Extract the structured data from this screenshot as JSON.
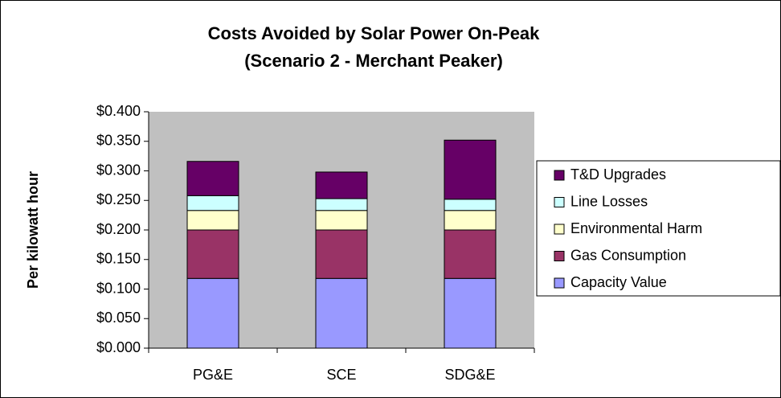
{
  "chart_data": {
    "type": "stacked_bar",
    "title": "Costs Avoided by Solar Power On-Peak",
    "subtitle": "(Scenario 2 - Merchant Peaker)",
    "y_label": "Per kilowatt hour",
    "categories": [
      "PG&E",
      "SCE",
      "SDG&E"
    ],
    "series": [
      {
        "name": "Capacity Value",
        "color": "#9999ff",
        "values": [
          0.118,
          0.118,
          0.118
        ]
      },
      {
        "name": "Gas Consumption",
        "color": "#993366",
        "values": [
          0.082,
          0.082,
          0.082
        ]
      },
      {
        "name": "Environmental Harm",
        "color": "#ffffcc",
        "values": [
          0.033,
          0.033,
          0.033
        ]
      },
      {
        "name": "Line Losses",
        "color": "#ccffff",
        "values": [
          0.025,
          0.02,
          0.019
        ]
      },
      {
        "name": "T&D Upgrades",
        "color": "#660066",
        "values": [
          0.058,
          0.045,
          0.1
        ]
      }
    ],
    "ylim": [
      0,
      0.4
    ],
    "yticks": [
      {
        "value": 0,
        "label": "$0.000"
      },
      {
        "value": 0.05,
        "label": "$0.050"
      },
      {
        "value": 0.1,
        "label": "$0.100"
      },
      {
        "value": 0.15,
        "label": "$0.150"
      },
      {
        "value": 0.2,
        "label": "$0.200"
      },
      {
        "value": 0.25,
        "label": "$0.250"
      },
      {
        "value": 0.3,
        "label": "$0.300"
      },
      {
        "value": 0.35,
        "label": "$0.350"
      },
      {
        "value": 0.4,
        "label": "$0.400"
      }
    ],
    "plot_background": "#c0c0c0"
  }
}
